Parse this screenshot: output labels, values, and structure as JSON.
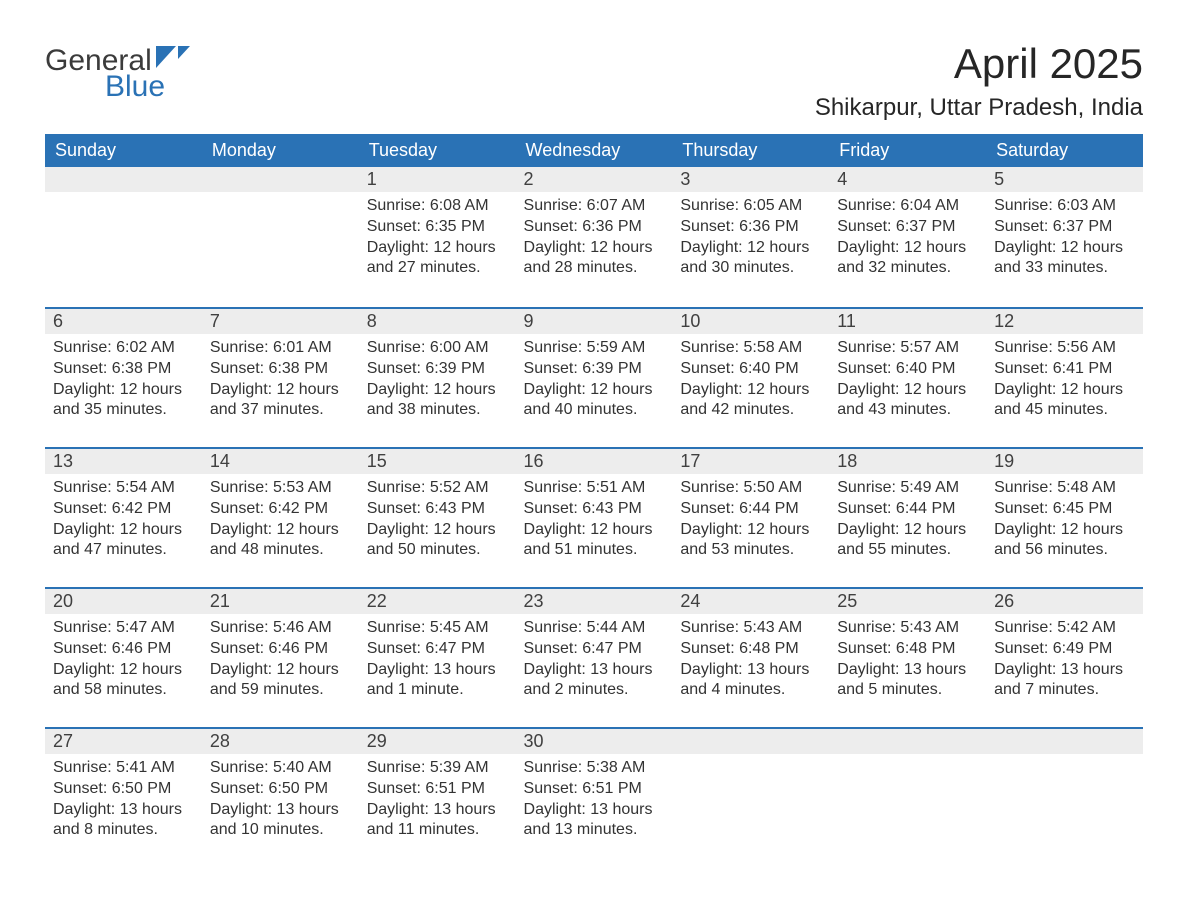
{
  "logo": {
    "text_general": "General",
    "text_blue": "Blue",
    "flag_color": "#2a72b5"
  },
  "header": {
    "month_title": "April 2025",
    "location": "Shikarpur, Uttar Pradesh, India"
  },
  "colors": {
    "header_bg": "#2a72b5",
    "header_text": "#ffffff",
    "daynum_bg": "#ededed",
    "border_top": "#2a72b5",
    "body_bg": "#ffffff",
    "text": "#333333"
  },
  "calendar": {
    "weekday_labels": [
      "Sunday",
      "Monday",
      "Tuesday",
      "Wednesday",
      "Thursday",
      "Friday",
      "Saturday"
    ],
    "weeks": [
      [
        null,
        null,
        {
          "day": "1",
          "sunrise": "Sunrise: 6:08 AM",
          "sunset": "Sunset: 6:35 PM",
          "daylight": "Daylight: 12 hours and 27 minutes."
        },
        {
          "day": "2",
          "sunrise": "Sunrise: 6:07 AM",
          "sunset": "Sunset: 6:36 PM",
          "daylight": "Daylight: 12 hours and 28 minutes."
        },
        {
          "day": "3",
          "sunrise": "Sunrise: 6:05 AM",
          "sunset": "Sunset: 6:36 PM",
          "daylight": "Daylight: 12 hours and 30 minutes."
        },
        {
          "day": "4",
          "sunrise": "Sunrise: 6:04 AM",
          "sunset": "Sunset: 6:37 PM",
          "daylight": "Daylight: 12 hours and 32 minutes."
        },
        {
          "day": "5",
          "sunrise": "Sunrise: 6:03 AM",
          "sunset": "Sunset: 6:37 PM",
          "daylight": "Daylight: 12 hours and 33 minutes."
        }
      ],
      [
        {
          "day": "6",
          "sunrise": "Sunrise: 6:02 AM",
          "sunset": "Sunset: 6:38 PM",
          "daylight": "Daylight: 12 hours and 35 minutes."
        },
        {
          "day": "7",
          "sunrise": "Sunrise: 6:01 AM",
          "sunset": "Sunset: 6:38 PM",
          "daylight": "Daylight: 12 hours and 37 minutes."
        },
        {
          "day": "8",
          "sunrise": "Sunrise: 6:00 AM",
          "sunset": "Sunset: 6:39 PM",
          "daylight": "Daylight: 12 hours and 38 minutes."
        },
        {
          "day": "9",
          "sunrise": "Sunrise: 5:59 AM",
          "sunset": "Sunset: 6:39 PM",
          "daylight": "Daylight: 12 hours and 40 minutes."
        },
        {
          "day": "10",
          "sunrise": "Sunrise: 5:58 AM",
          "sunset": "Sunset: 6:40 PM",
          "daylight": "Daylight: 12 hours and 42 minutes."
        },
        {
          "day": "11",
          "sunrise": "Sunrise: 5:57 AM",
          "sunset": "Sunset: 6:40 PM",
          "daylight": "Daylight: 12 hours and 43 minutes."
        },
        {
          "day": "12",
          "sunrise": "Sunrise: 5:56 AM",
          "sunset": "Sunset: 6:41 PM",
          "daylight": "Daylight: 12 hours and 45 minutes."
        }
      ],
      [
        {
          "day": "13",
          "sunrise": "Sunrise: 5:54 AM",
          "sunset": "Sunset: 6:42 PM",
          "daylight": "Daylight: 12 hours and 47 minutes."
        },
        {
          "day": "14",
          "sunrise": "Sunrise: 5:53 AM",
          "sunset": "Sunset: 6:42 PM",
          "daylight": "Daylight: 12 hours and 48 minutes."
        },
        {
          "day": "15",
          "sunrise": "Sunrise: 5:52 AM",
          "sunset": "Sunset: 6:43 PM",
          "daylight": "Daylight: 12 hours and 50 minutes."
        },
        {
          "day": "16",
          "sunrise": "Sunrise: 5:51 AM",
          "sunset": "Sunset: 6:43 PM",
          "daylight": "Daylight: 12 hours and 51 minutes."
        },
        {
          "day": "17",
          "sunrise": "Sunrise: 5:50 AM",
          "sunset": "Sunset: 6:44 PM",
          "daylight": "Daylight: 12 hours and 53 minutes."
        },
        {
          "day": "18",
          "sunrise": "Sunrise: 5:49 AM",
          "sunset": "Sunset: 6:44 PM",
          "daylight": "Daylight: 12 hours and 55 minutes."
        },
        {
          "day": "19",
          "sunrise": "Sunrise: 5:48 AM",
          "sunset": "Sunset: 6:45 PM",
          "daylight": "Daylight: 12 hours and 56 minutes."
        }
      ],
      [
        {
          "day": "20",
          "sunrise": "Sunrise: 5:47 AM",
          "sunset": "Sunset: 6:46 PM",
          "daylight": "Daylight: 12 hours and 58 minutes."
        },
        {
          "day": "21",
          "sunrise": "Sunrise: 5:46 AM",
          "sunset": "Sunset: 6:46 PM",
          "daylight": "Daylight: 12 hours and 59 minutes."
        },
        {
          "day": "22",
          "sunrise": "Sunrise: 5:45 AM",
          "sunset": "Sunset: 6:47 PM",
          "daylight": "Daylight: 13 hours and 1 minute."
        },
        {
          "day": "23",
          "sunrise": "Sunrise: 5:44 AM",
          "sunset": "Sunset: 6:47 PM",
          "daylight": "Daylight: 13 hours and 2 minutes."
        },
        {
          "day": "24",
          "sunrise": "Sunrise: 5:43 AM",
          "sunset": "Sunset: 6:48 PM",
          "daylight": "Daylight: 13 hours and 4 minutes."
        },
        {
          "day": "25",
          "sunrise": "Sunrise: 5:43 AM",
          "sunset": "Sunset: 6:48 PM",
          "daylight": "Daylight: 13 hours and 5 minutes."
        },
        {
          "day": "26",
          "sunrise": "Sunrise: 5:42 AM",
          "sunset": "Sunset: 6:49 PM",
          "daylight": "Daylight: 13 hours and 7 minutes."
        }
      ],
      [
        {
          "day": "27",
          "sunrise": "Sunrise: 5:41 AM",
          "sunset": "Sunset: 6:50 PM",
          "daylight": "Daylight: 13 hours and 8 minutes."
        },
        {
          "day": "28",
          "sunrise": "Sunrise: 5:40 AM",
          "sunset": "Sunset: 6:50 PM",
          "daylight": "Daylight: 13 hours and 10 minutes."
        },
        {
          "day": "29",
          "sunrise": "Sunrise: 5:39 AM",
          "sunset": "Sunset: 6:51 PM",
          "daylight": "Daylight: 13 hours and 11 minutes."
        },
        {
          "day": "30",
          "sunrise": "Sunrise: 5:38 AM",
          "sunset": "Sunset: 6:51 PM",
          "daylight": "Daylight: 13 hours and 13 minutes."
        },
        null,
        null,
        null
      ]
    ]
  }
}
